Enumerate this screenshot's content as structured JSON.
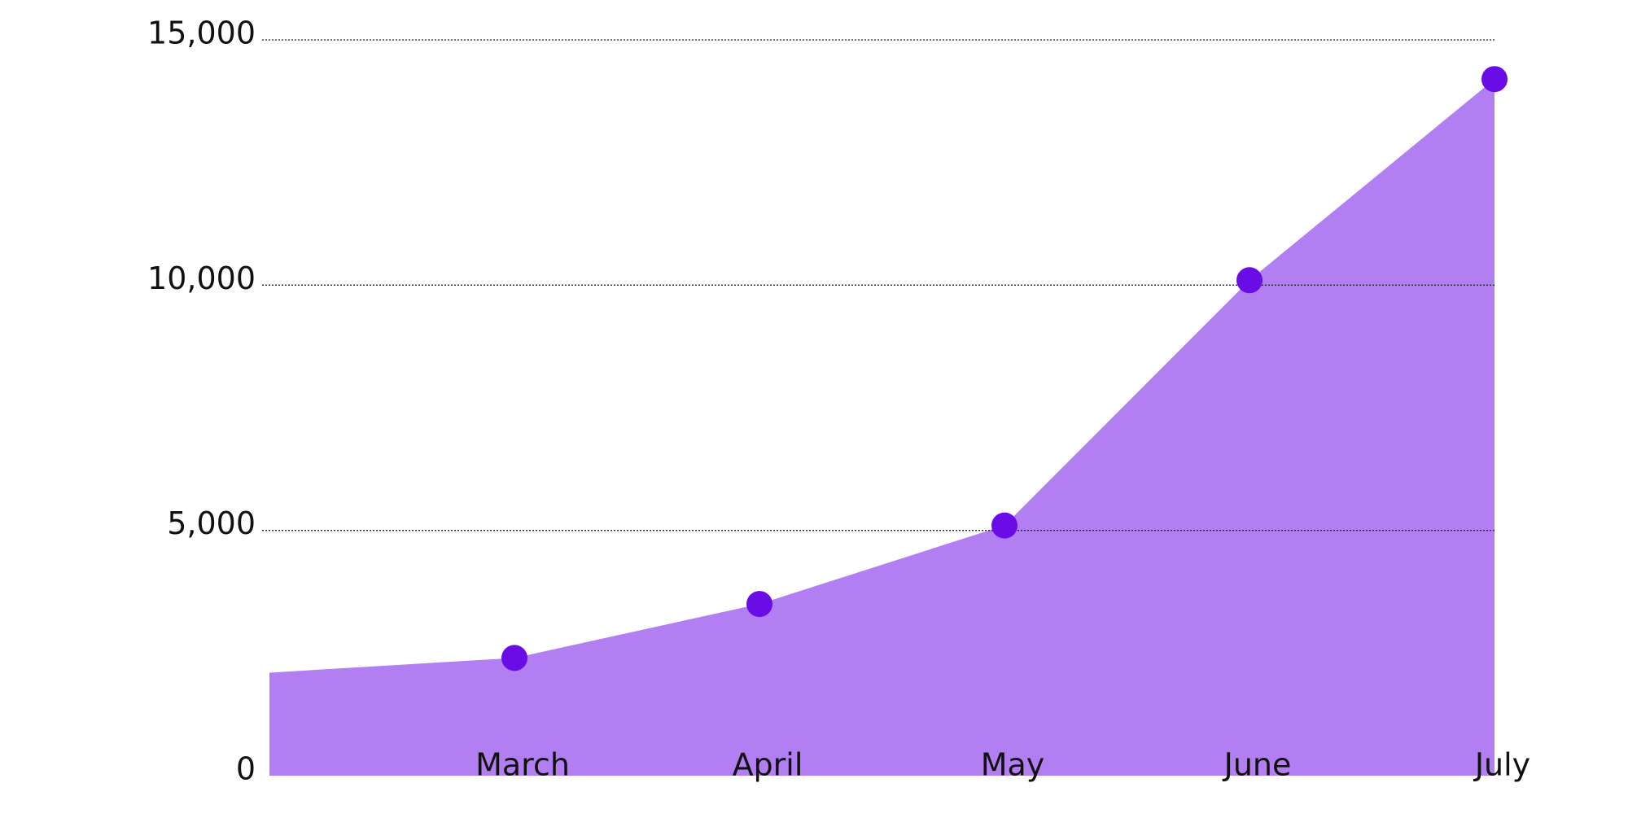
{
  "chart_data": {
    "type": "area",
    "categories": [
      null,
      "March",
      "April",
      "May",
      "June",
      "July"
    ],
    "values": [
      2100,
      2400,
      3500,
      5100,
      10100,
      14200
    ],
    "color": "#b27ff2",
    "marker_color": "#6a0ce6",
    "ylim": [
      0,
      15000
    ],
    "yticks": [
      0,
      {
        "value": 5000,
        "label": "5,000"
      },
      {
        "value": 10000,
        "label": "10,000"
      },
      {
        "value": 15000,
        "label": "15,000"
      }
    ],
    "grid": true
  }
}
